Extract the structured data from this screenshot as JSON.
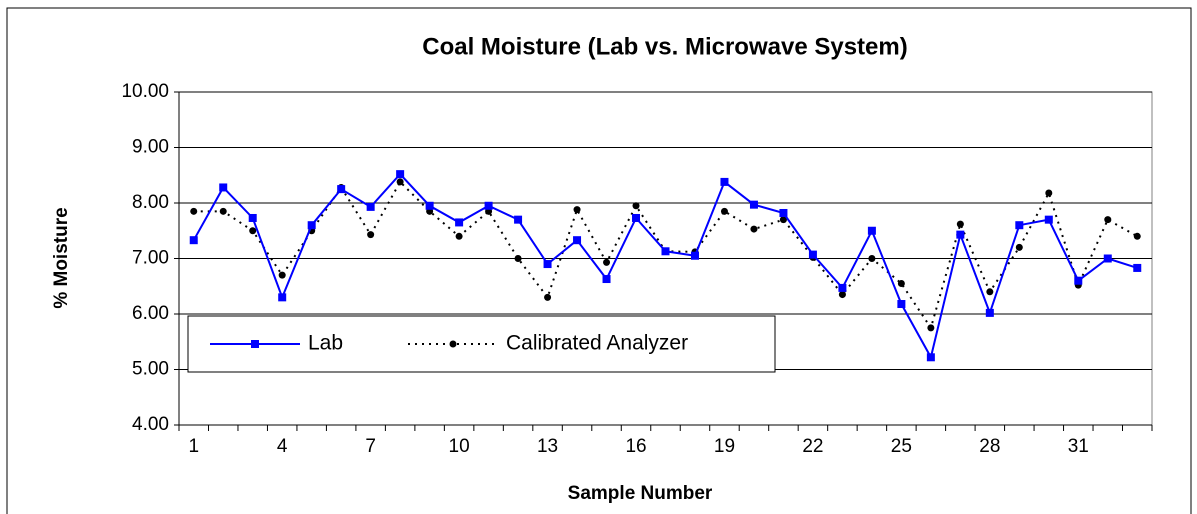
{
  "chart_data": {
    "type": "line",
    "title": "Coal Moisture (Lab vs. Microwave System)",
    "x_label": "Sample Number",
    "y_label": "% Moisture",
    "categories": [
      1,
      null,
      null,
      4,
      null,
      null,
      7,
      null,
      null,
      10,
      null,
      null,
      13,
      null,
      null,
      16,
      null,
      null,
      19,
      null,
      null,
      22,
      null,
      null,
      25,
      null,
      null,
      28,
      null,
      null,
      31,
      null,
      null
    ],
    "series": [
      {
        "name": "Lab",
        "color": "#0000ff",
        "marker": "square",
        "dash": "solid",
        "values": [
          7.33,
          8.28,
          7.73,
          6.3,
          7.6,
          8.25,
          7.93,
          8.52,
          7.95,
          7.65,
          7.95,
          7.7,
          6.9,
          7.33,
          6.63,
          7.73,
          7.13,
          7.05,
          8.38,
          7.97,
          7.82,
          7.07,
          6.47,
          7.5,
          6.18,
          5.22,
          7.43,
          6.02,
          7.6,
          7.7,
          6.6,
          7.0,
          6.83
        ]
      },
      {
        "name": "Calibrated Analyzer",
        "color": "#000000",
        "marker": "circle",
        "dash": "dotted",
        "values": [
          7.85,
          7.85,
          7.5,
          6.7,
          7.5,
          8.28,
          7.43,
          8.38,
          7.85,
          7.4,
          7.85,
          7.0,
          6.3,
          7.88,
          6.93,
          7.95,
          7.13,
          7.12,
          7.85,
          7.53,
          7.7,
          7.02,
          6.35,
          7.0,
          6.55,
          5.75,
          7.62,
          6.4,
          7.2,
          8.18,
          6.52,
          7.7,
          7.4
        ]
      }
    ],
    "ylim": [
      4,
      10
    ],
    "yticks": [
      {
        "value": 4,
        "label": "4.00"
      },
      {
        "value": 5,
        "label": "5.00"
      },
      {
        "value": 6,
        "label": "6.00"
      },
      {
        "value": 7,
        "label": "7.00"
      },
      {
        "value": 8,
        "label": "8.00"
      },
      {
        "value": 9,
        "label": "9.00"
      },
      {
        "value": 10,
        "label": "10.00"
      }
    ],
    "grid": true,
    "legend": "lower-left"
  }
}
